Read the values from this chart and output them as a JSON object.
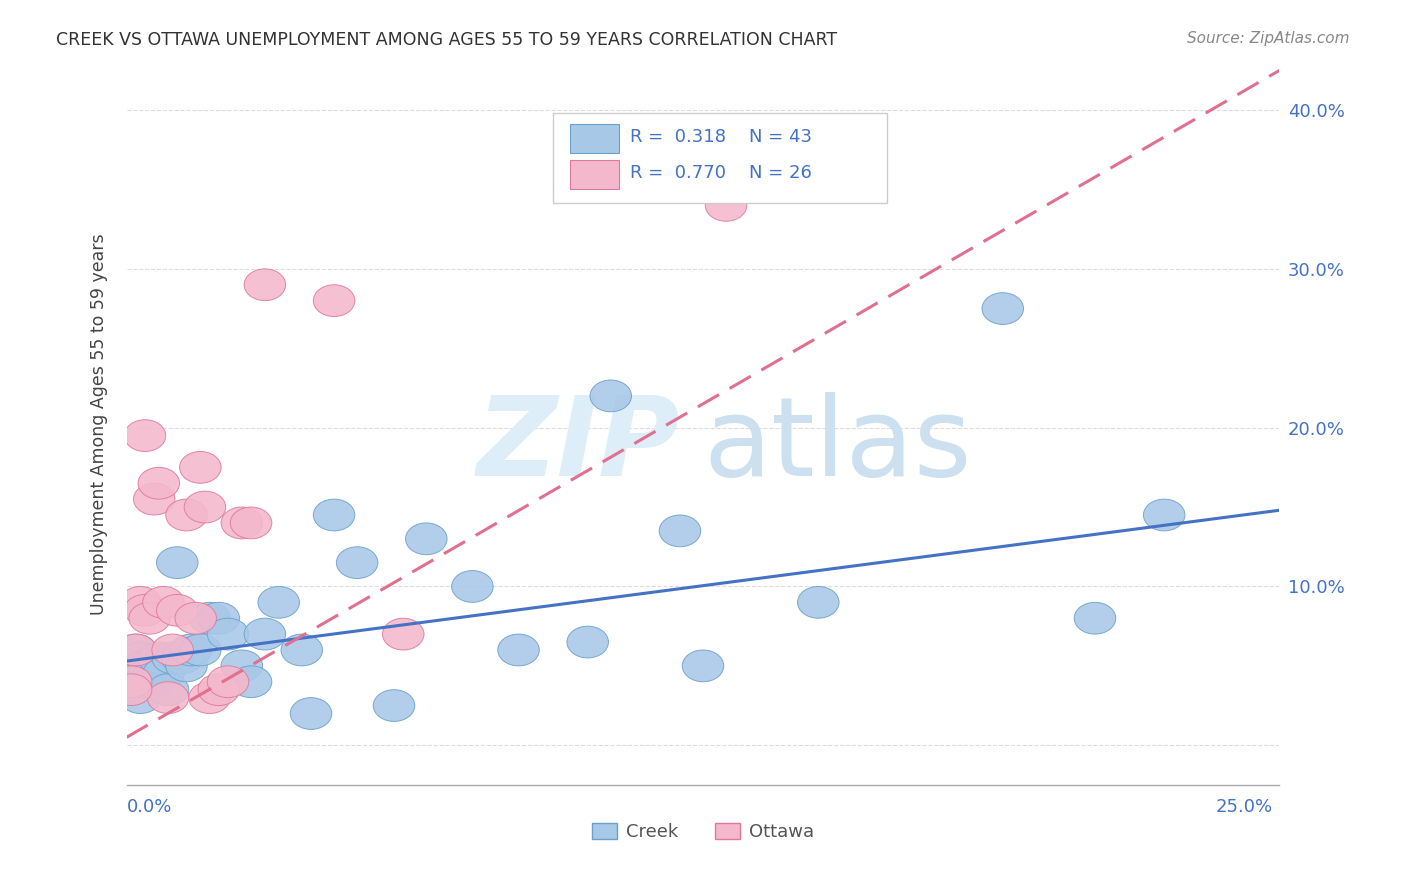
{
  "title": "CREEK VS OTTAWA UNEMPLOYMENT AMONG AGES 55 TO 59 YEARS CORRELATION CHART",
  "source": "Source: ZipAtlas.com",
  "ylabel": "Unemployment Among Ages 55 to 59 years",
  "xlim": [
    0.0,
    0.25
  ],
  "ylim": [
    -0.025,
    0.43
  ],
  "y_ticks": [
    0.0,
    0.1,
    0.2,
    0.3,
    0.4
  ],
  "y_tick_labels": [
    "",
    "10.0%",
    "20.0%",
    "30.0%",
    "40.0%"
  ],
  "creek_R": "0.318",
  "creek_N": "43",
  "ottawa_R": "0.770",
  "ottawa_N": "26",
  "creek_color": "#a8c8e8",
  "ottawa_color": "#f4b8cc",
  "creek_edge_color": "#6aa0cc",
  "ottawa_edge_color": "#e07898",
  "creek_line_color": "#4472c4",
  "ottawa_line_color": "#e07090",
  "axis_label_color": "#4472c4",
  "legend_R_N_color": "#4472c4",
  "legend_label_color": "#555555",
  "creek_x": [
    0.001,
    0.002,
    0.002,
    0.003,
    0.003,
    0.004,
    0.004,
    0.005,
    0.005,
    0.006,
    0.006,
    0.007,
    0.008,
    0.009,
    0.01,
    0.011,
    0.012,
    0.013,
    0.014,
    0.016,
    0.018,
    0.02,
    0.022,
    0.025,
    0.027,
    0.03,
    0.033,
    0.038,
    0.04,
    0.045,
    0.05,
    0.058,
    0.065,
    0.075,
    0.085,
    0.1,
    0.105,
    0.12,
    0.125,
    0.15,
    0.19,
    0.21,
    0.225
  ],
  "creek_y": [
    0.035,
    0.06,
    0.04,
    0.03,
    0.055,
    0.05,
    0.04,
    0.05,
    0.045,
    0.045,
    0.04,
    0.055,
    0.045,
    0.035,
    0.055,
    0.115,
    0.055,
    0.05,
    0.06,
    0.06,
    0.08,
    0.08,
    0.07,
    0.05,
    0.04,
    0.07,
    0.09,
    0.06,
    0.02,
    0.145,
    0.115,
    0.025,
    0.13,
    0.1,
    0.06,
    0.065,
    0.22,
    0.135,
    0.05,
    0.09,
    0.275,
    0.08,
    0.145
  ],
  "ottawa_x": [
    0.001,
    0.002,
    0.003,
    0.004,
    0.004,
    0.005,
    0.006,
    0.007,
    0.008,
    0.009,
    0.01,
    0.011,
    0.013,
    0.015,
    0.016,
    0.017,
    0.018,
    0.02,
    0.022,
    0.025,
    0.027,
    0.03,
    0.045,
    0.06,
    0.13,
    0.001
  ],
  "ottawa_y": [
    0.04,
    0.06,
    0.09,
    0.195,
    0.085,
    0.08,
    0.155,
    0.165,
    0.09,
    0.03,
    0.06,
    0.085,
    0.145,
    0.08,
    0.175,
    0.15,
    0.03,
    0.035,
    0.04,
    0.14,
    0.14,
    0.29,
    0.28,
    0.07,
    0.34,
    0.035
  ],
  "creek_trend_x": [
    0.0,
    0.25
  ],
  "creek_trend_y": [
    0.053,
    0.148
  ],
  "ottawa_trend_x": [
    0.0,
    0.25
  ],
  "ottawa_trend_y": [
    0.005,
    0.425
  ]
}
